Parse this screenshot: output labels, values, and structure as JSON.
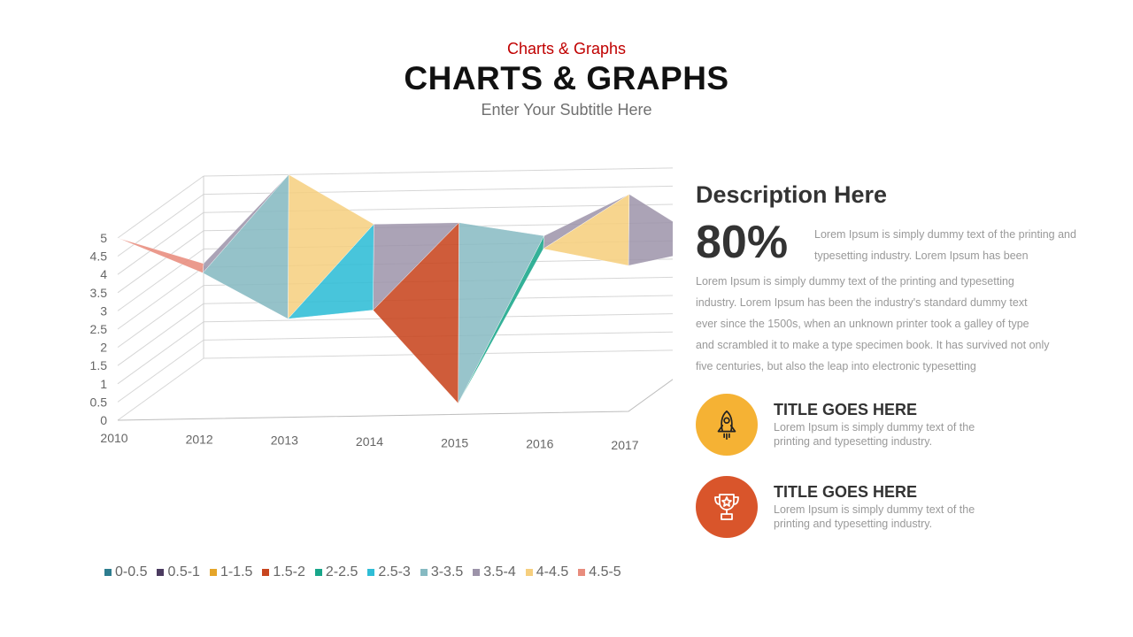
{
  "header": {
    "kicker": "Charts & Graphs",
    "title": "CHARTS & GRAPHS",
    "subtitle": "Enter Your Subtitle Here"
  },
  "chart_data": {
    "type": "surface",
    "x_categories": [
      "2010",
      "2012",
      "2013",
      "2014",
      "2015",
      "2016",
      "2017"
    ],
    "z_ticks": [
      "0",
      "0.5",
      "1",
      "1.5",
      "2",
      "2.5",
      "3",
      "3.5",
      "4",
      "4.5",
      "5"
    ],
    "zlim": [
      0,
      5
    ],
    "front_series": [
      5,
      4,
      2.7,
      2.9,
      0.3,
      4.5,
      4
    ],
    "back_series": [
      2.6,
      5,
      3.6,
      3.6,
      3.2,
      4.3,
      2.8
    ],
    "legend_position": "bottom",
    "legend": [
      {
        "label": "0-0.5",
        "color": "#2E7D8F"
      },
      {
        "label": "0.5-1",
        "color": "#4B3B60"
      },
      {
        "label": "1-1.5",
        "color": "#E5A52A"
      },
      {
        "label": "1.5-2",
        "color": "#C8461F"
      },
      {
        "label": "2-2.5",
        "color": "#18A68A"
      },
      {
        "label": "2.5-3",
        "color": "#2FBDD6"
      },
      {
        "label": "3-3.5",
        "color": "#86BAC2"
      },
      {
        "label": "3.5-4",
        "color": "#9C93A9"
      },
      {
        "label": "4-4.5",
        "color": "#F6CF7E"
      },
      {
        "label": "4.5-5",
        "color": "#E88C7D"
      }
    ]
  },
  "description": {
    "heading": "Description Here",
    "stat": "80%",
    "stat_text": "Lorem Ipsum is simply dummy text of the printing and typesetting industry. Lorem Ipsum has been",
    "paragraph": "Lorem Ipsum is simply dummy text of the printing and typesetting industry. Lorem Ipsum has been the industry's standard dummy text ever since the 1500s, when an unknown printer took a galley of type and scrambled it to make a type specimen book. It has survived not only five centuries, but also the leap into electronic typesetting"
  },
  "features": [
    {
      "title": "TITLE GOES HERE",
      "text": "Lorem Ipsum is simply dummy text of the printing and typesetting industry.",
      "icon": "rocket-icon",
      "color": "#F5B234"
    },
    {
      "title": "TITLE GOES HERE",
      "text": "Lorem Ipsum is simply dummy text of the printing and typesetting industry.",
      "icon": "trophy-icon",
      "color": "#D9552B"
    }
  ]
}
